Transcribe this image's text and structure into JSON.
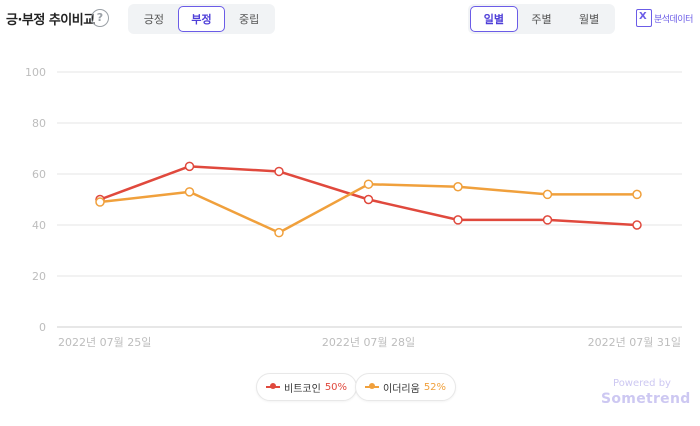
{
  "header": {
    "title": "긍·부정 추이비교",
    "help_icon": "question-icon",
    "sentiment_tabs": [
      {
        "label": "긍정",
        "active": false
      },
      {
        "label": "부정",
        "active": true
      },
      {
        "label": "중립",
        "active": false
      }
    ],
    "period_tabs": [
      {
        "label": "일별",
        "active": true
      },
      {
        "label": "주별",
        "active": false
      },
      {
        "label": "월별",
        "active": false
      }
    ],
    "export_label": "분석데이터",
    "export_icon": "excel-icon"
  },
  "colors": {
    "accent": "#6b5ce7",
    "series_bitcoin": "#e0493d",
    "series_ethereum": "#f0a03c"
  },
  "chart_data": {
    "type": "line",
    "x": [
      "2022-07-25",
      "2022-07-26",
      "2022-07-27",
      "2022-07-28",
      "2022-07-29",
      "2022-07-30",
      "2022-07-31"
    ],
    "x_tick_labels": [
      {
        "index": 0,
        "label": "2022년 07월 25일"
      },
      {
        "index": 3,
        "label": "2022년 07월 28일"
      },
      {
        "index": 6,
        "label": "2022년 07월 31일"
      }
    ],
    "ylim": [
      0,
      100
    ],
    "yticks": [
      0,
      20,
      40,
      60,
      80,
      100
    ],
    "grid": true,
    "legend_position": "bottom-center",
    "series": [
      {
        "name": "비트코인",
        "percent": "50%",
        "color": "#e0493d",
        "values": [
          50,
          63,
          61,
          50,
          42,
          42,
          40
        ]
      },
      {
        "name": "이더리움",
        "percent": "52%",
        "color": "#f0a03c",
        "values": [
          49,
          53,
          37,
          56,
          55,
          52,
          52
        ]
      }
    ]
  },
  "footer": {
    "powered_by": "Powered by",
    "brand": "Sometrend"
  }
}
